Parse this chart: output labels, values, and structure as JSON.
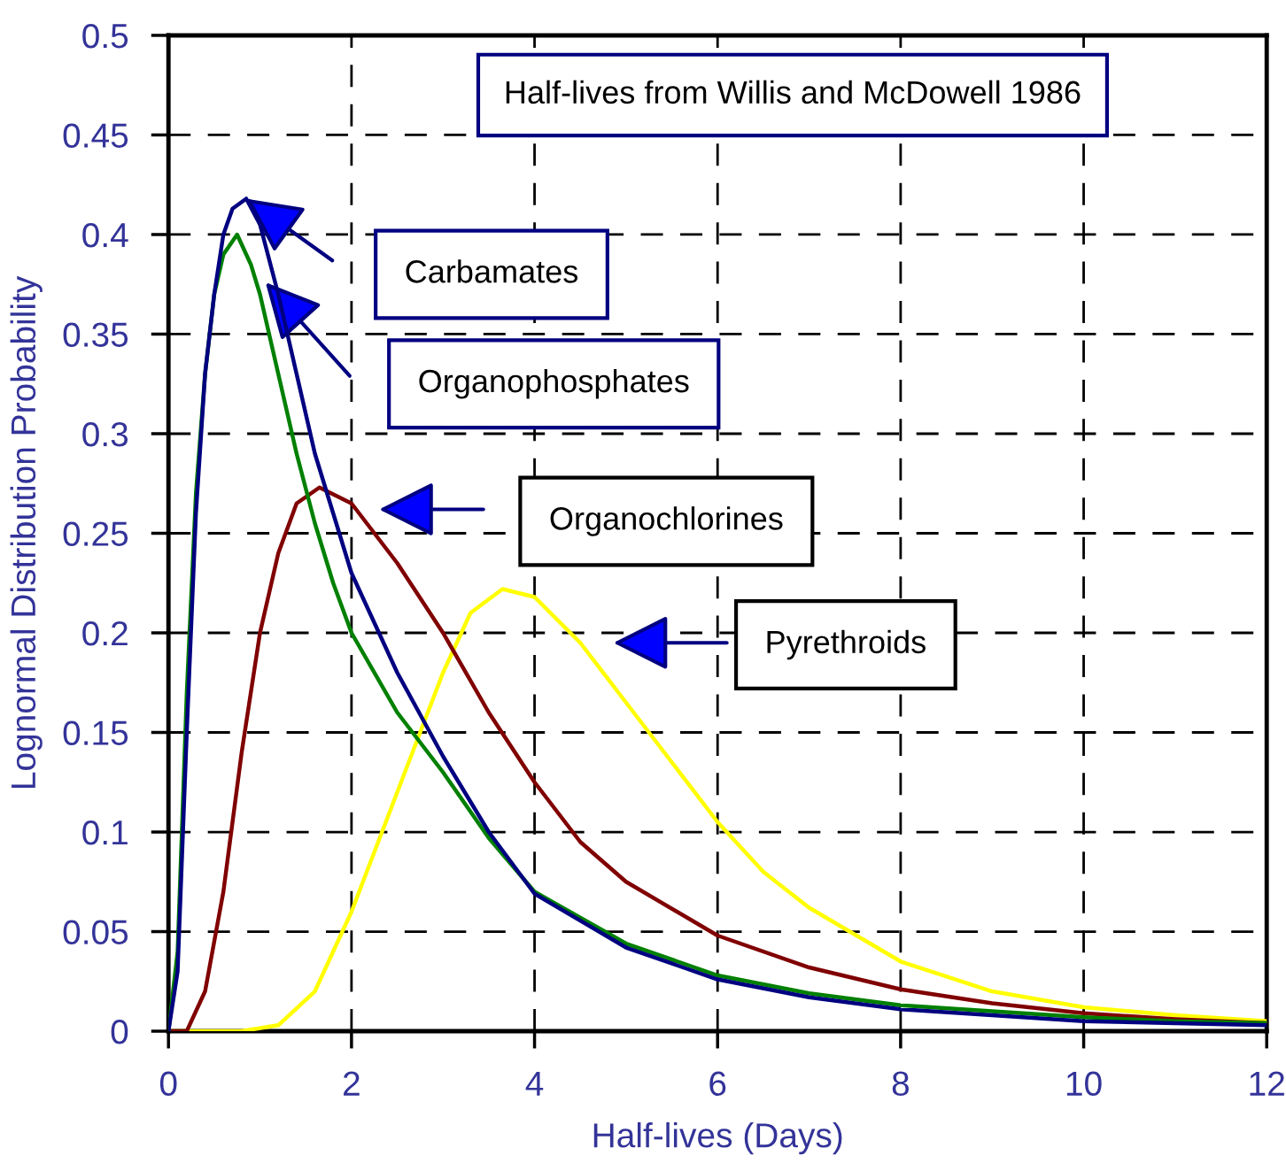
{
  "chart_data": {
    "type": "line",
    "xlabel": "Half-lives (Days)",
    "ylabel": "Lognormal Distribution Probability",
    "annotations": [
      "Half-lives from Willis and McDowell 1986",
      "Carbamates",
      "Organophosphates",
      "Organochlorines",
      "Pyrethroids"
    ],
    "xlim": [
      0,
      12
    ],
    "xticks": [
      0,
      2,
      4,
      6,
      8,
      10,
      12
    ],
    "ylim": [
      0,
      0.5
    ],
    "yticks": [
      0,
      0.05,
      0.1,
      0.15,
      0.2,
      0.25,
      0.3,
      0.35,
      0.4,
      0.45,
      0.5
    ],
    "grid": true,
    "line_style": "solid",
    "marker": "none",
    "series": [
      {
        "color": "#000080",
        "x": [
          0,
          0.1,
          0.2,
          0.3,
          0.4,
          0.5,
          0.6,
          0.7,
          0.85,
          1.0,
          1.2,
          1.4,
          1.6,
          1.8,
          2,
          2.5,
          3,
          3.5,
          4,
          5,
          6,
          7,
          8,
          9,
          10,
          11,
          12
        ],
        "values": [
          0,
          0.03,
          0.15,
          0.26,
          0.33,
          0.37,
          0.4,
          0.413,
          0.418,
          0.405,
          0.37,
          0.33,
          0.29,
          0.26,
          0.23,
          0.18,
          0.138,
          0.1,
          0.069,
          0.042,
          0.026,
          0.017,
          0.011,
          0.008,
          0.005,
          0.004,
          0.003
        ]
      },
      {
        "color": "#008000",
        "x": [
          0,
          0.1,
          0.2,
          0.3,
          0.4,
          0.5,
          0.6,
          0.75,
          0.9,
          1.0,
          1.2,
          1.4,
          1.6,
          1.8,
          2,
          2.5,
          3,
          3.5,
          4,
          5,
          6,
          7,
          8,
          9,
          10,
          11,
          12
        ],
        "values": [
          0,
          0.04,
          0.17,
          0.27,
          0.33,
          0.37,
          0.39,
          0.4,
          0.385,
          0.37,
          0.33,
          0.29,
          0.255,
          0.225,
          0.2,
          0.16,
          0.13,
          0.097,
          0.07,
          0.044,
          0.028,
          0.019,
          0.013,
          0.01,
          0.007,
          0.005,
          0.004
        ]
      },
      {
        "color": "#800000",
        "x": [
          0,
          0.2,
          0.4,
          0.6,
          0.8,
          1.0,
          1.2,
          1.4,
          1.65,
          2,
          2.5,
          3,
          3.5,
          4,
          4.5,
          5,
          6,
          7,
          8,
          9,
          10,
          11,
          12
        ],
        "values": [
          0,
          0,
          0.02,
          0.07,
          0.14,
          0.2,
          0.24,
          0.265,
          0.273,
          0.265,
          0.235,
          0.2,
          0.16,
          0.125,
          0.095,
          0.075,
          0.048,
          0.032,
          0.021,
          0.014,
          0.009,
          0.006,
          0.004
        ]
      },
      {
        "color": "#ffff00",
        "x": [
          0,
          0.8,
          1.2,
          1.6,
          2,
          2.5,
          3,
          3.3,
          3.65,
          4,
          4.5,
          5,
          5.5,
          6,
          6.5,
          7,
          8,
          9,
          10,
          11,
          12
        ],
        "values": [
          0,
          0,
          0.003,
          0.02,
          0.06,
          0.12,
          0.18,
          0.21,
          0.222,
          0.218,
          0.195,
          0.165,
          0.135,
          0.105,
          0.08,
          0.062,
          0.035,
          0.02,
          0.012,
          0.008,
          0.005
        ]
      }
    ]
  }
}
